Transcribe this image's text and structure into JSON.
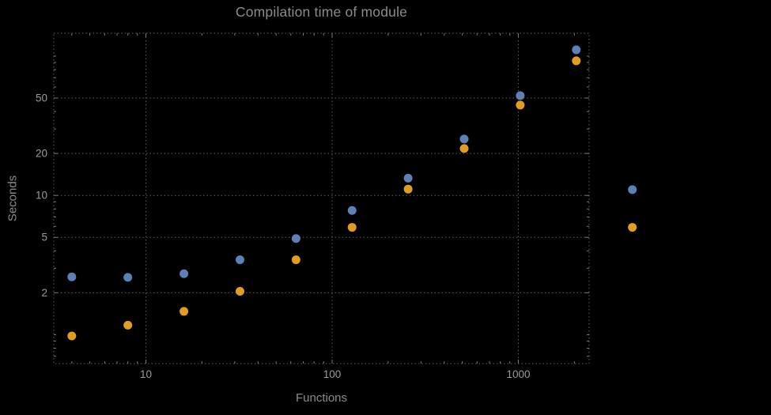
{
  "chart_data": {
    "type": "scatter",
    "title": "Compilation time of module",
    "xlabel": "Functions",
    "ylabel": "Seconds",
    "x_scale": "log",
    "y_scale": "log",
    "xlim": [
      3.2,
      2400
    ],
    "ylim": [
      0.62,
      146
    ],
    "grid": true,
    "marker_radius": 5.5,
    "x": [
      4,
      8,
      16,
      32,
      64,
      128,
      256,
      512,
      1024,
      2048,
      4096
    ],
    "series": [
      {
        "name": "series-1-blue",
        "color": "#5e81b5",
        "values": [
          2.6,
          2.58,
          2.74,
          3.45,
          4.9,
          7.8,
          13.3,
          25.4,
          52,
          111,
          11
        ]
      },
      {
        "name": "series-2-orange",
        "color": "#e19c24",
        "values": [
          0.98,
          1.17,
          1.47,
          2.05,
          3.45,
          5.9,
          11.1,
          21.7,
          44.5,
          92.5,
          5.9
        ]
      }
    ],
    "x_ticks": [
      {
        "value": 10,
        "label": "10"
      },
      {
        "value": 100,
        "label": "100"
      },
      {
        "value": 1000,
        "label": "1000"
      }
    ],
    "y_ticks": [
      {
        "value": 2,
        "label": "2"
      },
      {
        "value": 5,
        "label": "5"
      },
      {
        "value": 10,
        "label": "10"
      },
      {
        "value": 20,
        "label": "20"
      },
      {
        "value": 50,
        "label": "50"
      }
    ],
    "colors": {
      "background": "#000000",
      "grid": "#5f5f5f",
      "frame": "#5f5f5f",
      "tick": "#7a7a7a",
      "tick_label": "#9a9a9a",
      "title": "#8b8b8b",
      "axis_label": "#8b8b8b"
    }
  }
}
